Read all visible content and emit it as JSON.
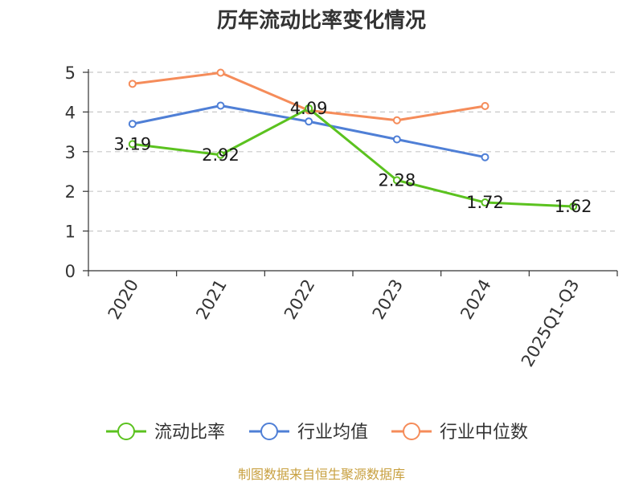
{
  "chart_data": {
    "type": "line",
    "title": "历年流动比率变化情况",
    "categories": [
      "2020",
      "2021",
      "2022",
      "2023",
      "2024",
      "2025Q1-Q3"
    ],
    "ylim": [
      0,
      5
    ],
    "yticks": [
      "0",
      "1",
      "2",
      "3",
      "4",
      "5"
    ],
    "grid": true,
    "legend_position": "bottom",
    "series": [
      {
        "name": "流动比率",
        "color": "#5bc21f",
        "values": [
          3.19,
          2.92,
          4.09,
          2.28,
          1.72,
          1.62
        ],
        "labels": [
          "3.19",
          "2.92",
          "4.09",
          "2.28",
          "1.72",
          "1.62"
        ]
      },
      {
        "name": "行业均值",
        "color": "#4f7fd6",
        "values": [
          3.7,
          4.16,
          3.76,
          3.31,
          2.86,
          null
        ]
      },
      {
        "name": "行业中位数",
        "color": "#f58c5a",
        "values": [
          4.71,
          4.99,
          4.04,
          3.79,
          4.15,
          null
        ]
      }
    ]
  },
  "source_text": "制图数据来自恒生聚源数据库"
}
